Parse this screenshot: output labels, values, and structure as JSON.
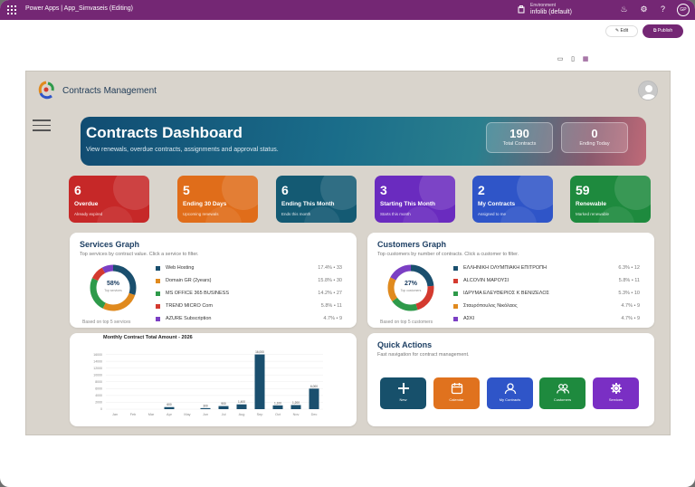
{
  "topbar": {
    "title": "Power Apps  |  App_Simvaseis (Editing)",
    "env_label": "Environment",
    "env_value": "infolib (default)",
    "avatar": "GP"
  },
  "editbar": {
    "edit_label": "Edit",
    "publish_label": "Publish"
  },
  "app": {
    "title": "Contracts Management"
  },
  "hero": {
    "title": "Contracts Dashboard",
    "subtitle": "View renewals, overdue contracts, assignments and approval status.",
    "stats": [
      {
        "value": "190",
        "label": "Total Contracts"
      },
      {
        "value": "0",
        "label": "Ending Today"
      }
    ]
  },
  "kpis": [
    {
      "value": "6",
      "label": "Overdue",
      "sub": "Already expired",
      "color": "#c62828"
    },
    {
      "value": "5",
      "label": "Ending 30 Days",
      "sub": "Upcoming renewals",
      "color": "#e06d1a"
    },
    {
      "value": "6",
      "label": "Ending This Month",
      "sub": "Ends this month",
      "color": "#145a73"
    },
    {
      "value": "3",
      "label": "Starting This Month",
      "sub": "Starts this month",
      "color": "#6a2bbf"
    },
    {
      "value": "2",
      "label": "My Contracts",
      "sub": "Assigned to me",
      "color": "#2f55c8"
    },
    {
      "value": "59",
      "label": "Renewable",
      "sub": "Marked renewable",
      "color": "#1e8a3e"
    }
  ],
  "services": {
    "title": "Services Graph",
    "subtitle": "Top services by contract value. Click a service to filter.",
    "center_pct": "58%",
    "center_sub": "Top services",
    "footer": "Based on top 5 services",
    "items": [
      {
        "name": "Web Hosting",
        "value": "17.4% • 33",
        "color": "#1a4f6e",
        "pct": 17.4
      },
      {
        "name": "Domain GR (2years)",
        "value": "15.8% • 30",
        "color": "#e08a1e",
        "pct": 15.8
      },
      {
        "name": "MS OFFICE 365 BUSINESS",
        "value": "14.2% • 27",
        "color": "#2e9a4a",
        "pct": 14.2
      },
      {
        "name": "TREND MICRO Com",
        "value": "5.8% • 11",
        "color": "#d43a2f",
        "pct": 5.8
      },
      {
        "name": "AZURE Subscription",
        "value": "4.7% • 9",
        "color": "#7b3fc4",
        "pct": 4.7
      }
    ]
  },
  "customers": {
    "title": "Customers Graph",
    "subtitle": "Top customers by number of contracts. Click a customer to filter.",
    "center_pct": "27%",
    "center_sub": "Top customers",
    "footer": "Based on top 5 customers",
    "items": [
      {
        "name": "ΕΛΛΗΝΙΚΗ ΟΛΥΜΠΙΑΚΗ ΕΠΙΤΡΟΠΗ",
        "value": "6.3% • 12",
        "color": "#1a4f6e",
        "pct": 6.3
      },
      {
        "name": "ALCOVIN ΜΑΡΟΥΣΙ",
        "value": "5.8% • 11",
        "color": "#d43a2f",
        "pct": 5.8
      },
      {
        "name": "ΙΔΡΥΜΑ ΕΛΕΥΘΕΡΙΟΣ Κ ΒΕΝΙΖΕΛΟΣ",
        "value": "5.3% • 10",
        "color": "#2e9a4a",
        "pct": 5.3
      },
      {
        "name": "Σταυρόπουλος Νικόλαος",
        "value": "4.7% • 9",
        "color": "#e08a1e",
        "pct": 4.7
      },
      {
        "name": "ΑΣΚΙ",
        "value": "4.7% • 9",
        "color": "#7b3fc4",
        "pct": 4.7
      }
    ]
  },
  "chart_data": {
    "type": "bar",
    "title": "Monthly Contract Total Amount - 2026",
    "categories": [
      "Jan",
      "Feb",
      "Mar",
      "Apr",
      "May",
      "Jun",
      "Jul",
      "Aug",
      "Sep",
      "Oct",
      "Nov",
      "Dec"
    ],
    "values": [
      0,
      0,
      0,
      600,
      0,
      300,
      900,
      1400,
      16000,
      1100,
      1200,
      6000
    ],
    "data_labels": [
      "",
      "",
      "",
      "600",
      "",
      "300",
      "900",
      "1,400",
      "16,000",
      "1,100",
      "1,200",
      "6,000"
    ],
    "yticks": [
      "0",
      "2000",
      "4000",
      "6000",
      "8000",
      "10000",
      "12000",
      "14000",
      "16000"
    ],
    "ylim": [
      0,
      18000
    ],
    "color": "#1a4f6e"
  },
  "quick": {
    "title": "Quick Actions",
    "subtitle": "Fast navigation for contract management.",
    "items": [
      {
        "label": "New",
        "color": "#17506b",
        "icon": "plus-icon"
      },
      {
        "label": "Calendar",
        "color": "#e0721e",
        "icon": "calendar-icon"
      },
      {
        "label": "My Contracts",
        "color": "#2f55c8",
        "icon": "user-icon"
      },
      {
        "label": "Customers",
        "color": "#1e8a3e",
        "icon": "people-icon"
      },
      {
        "label": "Services",
        "color": "#7a2fc4",
        "icon": "gear-icon"
      }
    ]
  }
}
